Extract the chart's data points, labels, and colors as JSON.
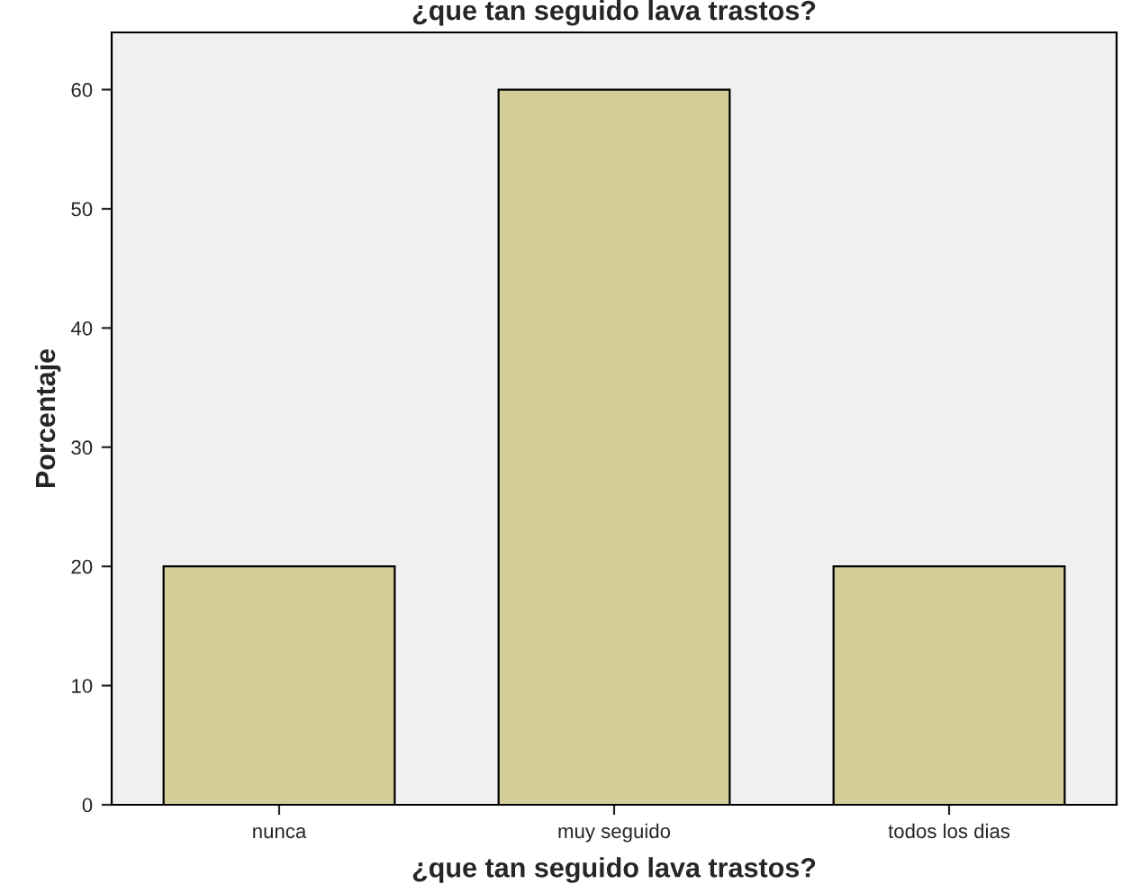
{
  "chart_data": {
    "type": "bar",
    "title": "¿que tan seguido lava trastos?",
    "xlabel": "¿que tan seguido lava trastos?",
    "ylabel": "Porcentaje",
    "categories": [
      "nunca",
      "muy seguido",
      "todos los dias"
    ],
    "values": [
      20,
      60,
      20
    ],
    "color": "#d3ce97",
    "ylim": [
      0,
      64.8
    ],
    "yticks": [
      0,
      10,
      20,
      30,
      40,
      50,
      60
    ],
    "grid": false,
    "legend": false
  }
}
